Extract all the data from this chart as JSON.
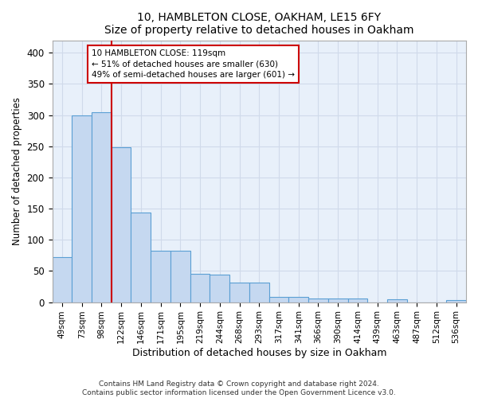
{
  "title1": "10, HAMBLETON CLOSE, OAKHAM, LE15 6FY",
  "title2": "Size of property relative to detached houses in Oakham",
  "xlabel": "Distribution of detached houses by size in Oakham",
  "ylabel": "Number of detached properties",
  "bar_labels": [
    "49sqm",
    "73sqm",
    "98sqm",
    "122sqm",
    "146sqm",
    "171sqm",
    "195sqm",
    "219sqm",
    "244sqm",
    "268sqm",
    "293sqm",
    "317sqm",
    "341sqm",
    "366sqm",
    "390sqm",
    "414sqm",
    "439sqm",
    "463sqm",
    "487sqm",
    "512sqm",
    "536sqm"
  ],
  "bar_values": [
    72,
    300,
    304,
    249,
    144,
    83,
    83,
    45,
    44,
    32,
    32,
    9,
    8,
    6,
    6,
    6,
    0,
    4,
    0,
    0,
    3
  ],
  "bar_color": "#c5d8f0",
  "bar_edgecolor": "#5a9fd4",
  "bg_color": "#e8f0fa",
  "grid_color": "#d0daea",
  "vline_x": 3.0,
  "vline_color": "#cc0000",
  "annotation_line1": "10 HAMBLETON CLOSE: 119sqm",
  "annotation_line2": "← 51% of detached houses are smaller (630)",
  "annotation_line3": "49% of semi-detached houses are larger (601) →",
  "footnote1": "Contains HM Land Registry data © Crown copyright and database right 2024.",
  "footnote2": "Contains public sector information licensed under the Open Government Licence v3.0.",
  "ylim": [
    0,
    420
  ],
  "yticks": [
    0,
    50,
    100,
    150,
    200,
    250,
    300,
    350,
    400
  ]
}
